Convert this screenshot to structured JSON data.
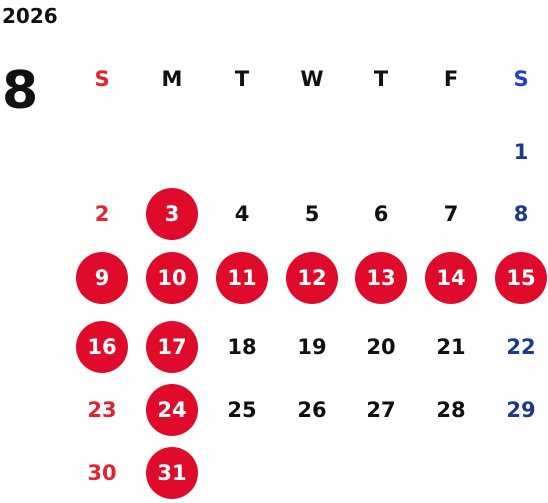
{
  "year": "2026",
  "month": "8",
  "colors": {
    "holiday_bg": "#e00a2b",
    "holiday_text": "#ffffff",
    "sunday": "#e0252f",
    "saturday": "#1a3a8c",
    "saturday_header": "#1e3ed6",
    "weekday": "#111111"
  },
  "weekdays": [
    "S",
    "M",
    "T",
    "W",
    "T",
    "F",
    "S"
  ],
  "weeks": [
    [
      null,
      null,
      null,
      null,
      null,
      null,
      {
        "day": "1"
      }
    ],
    [
      {
        "day": "2"
      },
      {
        "day": "3",
        "holiday": true
      },
      {
        "day": "4"
      },
      {
        "day": "5"
      },
      {
        "day": "6"
      },
      {
        "day": "7"
      },
      {
        "day": "8"
      }
    ],
    [
      {
        "day": "9",
        "holiday": true
      },
      {
        "day": "10",
        "holiday": true
      },
      {
        "day": "11",
        "holiday": true
      },
      {
        "day": "12",
        "holiday": true
      },
      {
        "day": "13",
        "holiday": true
      },
      {
        "day": "14",
        "holiday": true
      },
      {
        "day": "15",
        "holiday": true
      }
    ],
    [
      {
        "day": "16",
        "holiday": true
      },
      {
        "day": "17",
        "holiday": true
      },
      {
        "day": "18"
      },
      {
        "day": "19"
      },
      {
        "day": "20"
      },
      {
        "day": "21"
      },
      {
        "day": "22"
      }
    ],
    [
      {
        "day": "23"
      },
      {
        "day": "24",
        "holiday": true
      },
      {
        "day": "25"
      },
      {
        "day": "26"
      },
      {
        "day": "27"
      },
      {
        "day": "28"
      },
      {
        "day": "29"
      }
    ],
    [
      {
        "day": "30"
      },
      {
        "day": "31",
        "holiday": true
      },
      null,
      null,
      null,
      null,
      null
    ]
  ]
}
